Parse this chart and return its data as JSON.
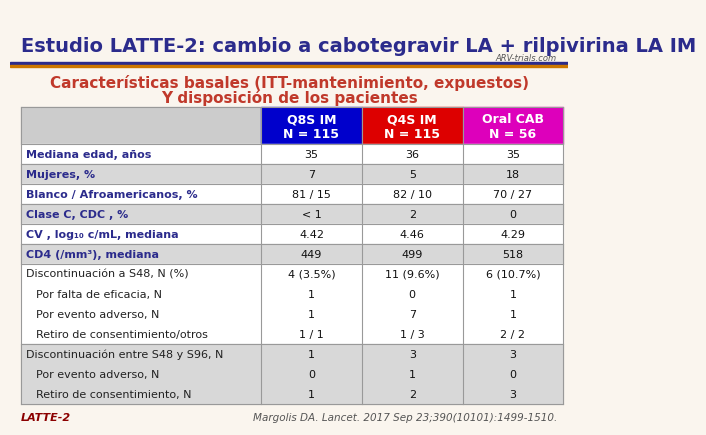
{
  "title": "Estudio LATTE-2: cambio a cabotegravir LA + rilpivirina LA IM",
  "subtitle_line1": "Características basales (ITT-mantenimiento, expuestos)",
  "subtitle_line2": "Y disposición de los pacientes",
  "bg_color": "#faf5ee",
  "title_color": "#2b2b8c",
  "subtitle_color": "#c0392b",
  "col_headers": [
    "Q8S IM\nN = 115",
    "Q4S IM\nN = 115",
    "Oral CAB\nN = 56"
  ],
  "col_header_colors": [
    "#0000cc",
    "#dd0000",
    "#dd00bb"
  ],
  "col_header_text_color": "#ffffff",
  "row_label_color": "#2b2b8c",
  "row_groups": [
    {
      "rows": [
        {
          "label": "Mediana edad, años",
          "values": [
            "35",
            "36",
            "35"
          ],
          "indent": false,
          "bold": true
        }
      ],
      "bg": "#ffffff"
    },
    {
      "rows": [
        {
          "label": "Mujeres, %",
          "values": [
            "7",
            "5",
            "18"
          ],
          "indent": false,
          "bold": true
        }
      ],
      "bg": "#d8d8d8"
    },
    {
      "rows": [
        {
          "label": "Blanco / Afroamericanos, %",
          "values": [
            "81 / 15",
            "82 / 10",
            "70 / 27"
          ],
          "indent": false,
          "bold": true
        }
      ],
      "bg": "#ffffff"
    },
    {
      "rows": [
        {
          "label": "Clase C, CDC , %",
          "values": [
            "< 1",
            "2",
            "0"
          ],
          "indent": false,
          "bold": true
        }
      ],
      "bg": "#d8d8d8"
    },
    {
      "rows": [
        {
          "label": "CV , log₁₀ c/mL, mediana",
          "values": [
            "4.42",
            "4.46",
            "4.29"
          ],
          "indent": false,
          "bold": true
        }
      ],
      "bg": "#ffffff"
    },
    {
      "rows": [
        {
          "label": "CD4 (/mm³), mediana",
          "values": [
            "449",
            "499",
            "518"
          ],
          "indent": false,
          "bold": true
        }
      ],
      "bg": "#d8d8d8"
    },
    {
      "rows": [
        {
          "label": "Discontinuación a S48, N (%)",
          "values": [
            "4 (3.5%)",
            "11 (9.6%)",
            "6 (10.7%)"
          ],
          "indent": false,
          "bold": false
        },
        {
          "label": "    Por falta de eficacia, N",
          "values": [
            "1",
            "0",
            "1"
          ],
          "indent": true,
          "bold": false
        },
        {
          "label": "    Por evento adverso, N",
          "values": [
            "1",
            "7",
            "1"
          ],
          "indent": true,
          "bold": false
        },
        {
          "label": "    Retiro de consentimiento/otros",
          "values": [
            "1 / 1",
            "1 / 3",
            "2 / 2"
          ],
          "indent": true,
          "bold": false
        }
      ],
      "bg": "#ffffff"
    },
    {
      "rows": [
        {
          "label": "Discontinuación entre S48 y S96, N",
          "values": [
            "1",
            "3",
            "3"
          ],
          "indent": false,
          "bold": false
        },
        {
          "label": "    Por evento adverso, N",
          "values": [
            "0",
            "1",
            "0"
          ],
          "indent": true,
          "bold": false
        },
        {
          "label": "    Retiro de consentimiento, N",
          "values": [
            "1",
            "2",
            "3"
          ],
          "indent": true,
          "bold": false
        }
      ],
      "bg": "#d8d8d8"
    }
  ],
  "footer_left": "LATTE-2",
  "footer_right": "Margolis DA. Lancet. 2017 Sep 23;390(10101):1499-1510.",
  "footer_color": "#8b0000",
  "table_border_color": "#999999",
  "header_bar_color": "#2b2b8c",
  "orange_line_color": "#cc7700"
}
